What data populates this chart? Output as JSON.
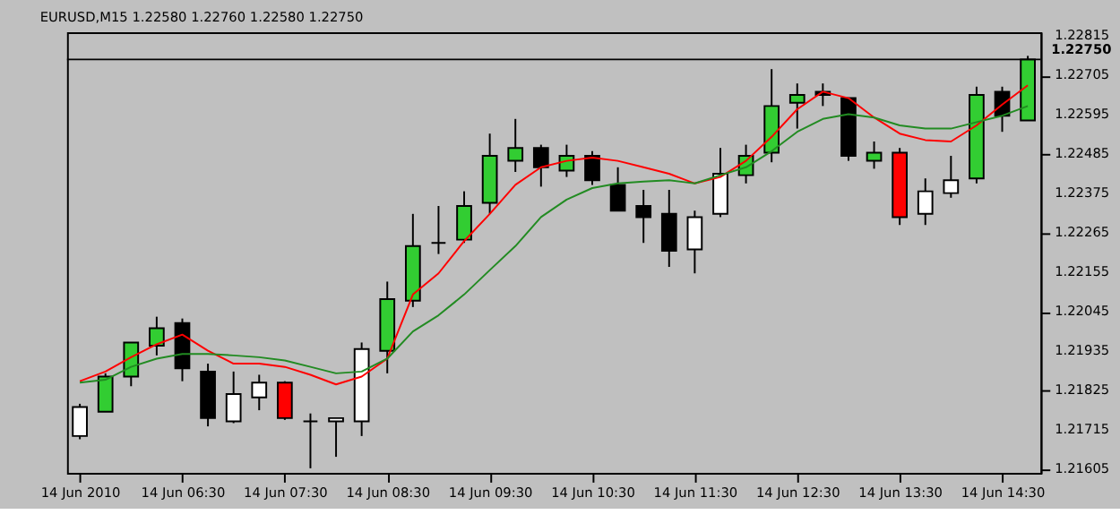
{
  "chart_data": {
    "type": "candlestick",
    "title": "EURUSD,M15  1.22580 1.22760 1.22580 1.22750",
    "categories": [
      "14 Jun 2010",
      null,
      null,
      null,
      "14 Jun 06:30",
      null,
      null,
      null,
      "14 Jun 07:30",
      null,
      null,
      null,
      "14 Jun 08:30",
      null,
      null,
      null,
      "14 Jun 09:30",
      null,
      null,
      null,
      "14 Jun 10:30",
      null,
      null,
      null,
      "14 Jun 11:30",
      null,
      null,
      null,
      "14 Jun 12:30",
      null,
      null,
      null,
      "14 Jun 13:30",
      null,
      null,
      null,
      "14 Jun 14:30",
      null
    ],
    "ohlc": [
      [
        1.21699,
        1.21789,
        1.2169,
        1.2178
      ],
      [
        1.21767,
        1.21874,
        1.21767,
        1.21865
      ],
      [
        1.21865,
        1.2196,
        1.21838,
        1.2196
      ],
      [
        1.21951,
        1.22032,
        1.21924,
        1.22
      ],
      [
        1.22014,
        1.22027,
        1.21852,
        1.21888
      ],
      [
        1.21879,
        1.21901,
        1.21726,
        1.21749
      ],
      [
        1.2174,
        1.21879,
        1.21735,
        1.21816
      ],
      [
        1.21807,
        1.2187,
        1.21771,
        1.21848
      ],
      [
        1.21848,
        1.21852,
        1.21744,
        1.21749
      ],
      [
        1.2174,
        1.21762,
        1.21609,
        1.2174
      ],
      [
        1.2174,
        1.21749,
        1.21641,
        1.21749
      ],
      [
        1.2174,
        1.2196,
        1.21699,
        1.21942
      ],
      [
        1.21937,
        1.2213,
        1.21874,
        1.22081
      ],
      [
        1.22077,
        1.22319,
        1.22059,
        1.22229
      ],
      [
        1.22238,
        1.22341,
        1.22207,
        1.22238
      ],
      [
        1.22247,
        1.22382,
        1.22238,
        1.22341
      ],
      [
        1.2235,
        1.22543,
        1.22319,
        1.22481
      ],
      [
        1.22467,
        1.22584,
        1.22436,
        1.22503
      ],
      [
        1.22503,
        1.22512,
        1.22395,
        1.22449
      ],
      [
        1.2244,
        1.22512,
        1.22422,
        1.22481
      ],
      [
        1.22481,
        1.22494,
        1.224,
        1.22413
      ],
      [
        1.224,
        1.22449,
        1.22328,
        1.22328
      ],
      [
        1.22341,
        1.22386,
        1.22238,
        1.2231
      ],
      [
        1.22319,
        1.22386,
        1.22171,
        1.22216
      ],
      [
        1.2222,
        1.22328,
        1.22153,
        1.2231
      ],
      [
        1.22319,
        1.22503,
        1.2231,
        1.22431
      ],
      [
        1.22427,
        1.22512,
        1.22404,
        1.22481
      ],
      [
        1.2249,
        1.22723,
        1.22463,
        1.2262
      ],
      [
        1.22629,
        1.22683,
        1.22557,
        1.22651
      ],
      [
        1.2266,
        1.22683,
        1.2262,
        1.22651
      ],
      [
        1.22642,
        1.22642,
        1.22467,
        1.22481
      ],
      [
        1.22467,
        1.22521,
        1.22445,
        1.2249
      ],
      [
        1.2249,
        1.22503,
        1.22288,
        1.2231
      ],
      [
        1.22319,
        1.22418,
        1.22288,
        1.22382
      ],
      [
        1.22377,
        1.22481,
        1.22364,
        1.22413
      ],
      [
        1.22418,
        1.22674,
        1.22404,
        1.22651
      ],
      [
        1.2266,
        1.22674,
        1.22548,
        1.22593
      ],
      [
        1.2258,
        1.2276,
        1.2258,
        1.2275
      ]
    ],
    "colors": [
      "#ffffff",
      "#32cd32",
      "#32cd32",
      "#32cd32",
      "#000000",
      "#000000",
      "#ffffff",
      "#ffffff",
      "#ff0000",
      "#000000",
      "#ffffff",
      "#ffffff",
      "#32cd32",
      "#32cd32",
      "#000000",
      "#32cd32",
      "#32cd32",
      "#32cd32",
      "#000000",
      "#32cd32",
      "#000000",
      "#000000",
      "#000000",
      "#000000",
      "#ffffff",
      "#ffffff",
      "#32cd32",
      "#32cd32",
      "#32cd32",
      "#000000",
      "#000000",
      "#32cd32",
      "#ff0000",
      "#ffffff",
      "#ffffff",
      "#32cd32",
      "#000000",
      "#32cd32"
    ],
    "series": [
      {
        "type": "line",
        "color": "#ff0000",
        "values": [
          1.21852,
          1.21879,
          1.21919,
          1.21955,
          1.21982,
          1.21937,
          1.21901,
          1.21901,
          1.21892,
          1.2187,
          1.21843,
          1.21865,
          1.21915,
          1.22094,
          1.22153,
          1.22243,
          1.22319,
          1.224,
          1.22449,
          1.22467,
          1.22476,
          1.22467,
          1.22449,
          1.22431,
          1.22404,
          1.22422,
          1.22467,
          1.22534,
          1.22611,
          1.2266,
          1.22642,
          1.22588,
          1.22543,
          1.22525,
          1.22521,
          1.22566,
          1.22624,
          1.22678
        ]
      },
      {
        "type": "line",
        "color": "#228b22",
        "values": [
          1.21848,
          1.21856,
          1.21892,
          1.21915,
          1.21928,
          1.21928,
          1.21924,
          1.21919,
          1.2191,
          1.21892,
          1.21874,
          1.21879,
          1.21915,
          1.21991,
          1.22036,
          1.22094,
          1.22162,
          1.22229,
          1.2231,
          1.22359,
          1.22391,
          1.22404,
          1.22409,
          1.22413,
          1.22404,
          1.22427,
          1.22449,
          1.22494,
          1.22548,
          1.22584,
          1.22597,
          1.22588,
          1.22566,
          1.22557,
          1.22557,
          1.22575,
          1.22593,
          1.2262
        ]
      }
    ],
    "ylim": [
      1.21596,
      1.22826
    ],
    "yticks": [
      1.21605,
      1.21715,
      1.21825,
      1.21935,
      1.22045,
      1.22155,
      1.22265,
      1.22375,
      1.22485,
      1.22595,
      1.22705,
      1.22815
    ],
    "ref_lines": [
      {
        "axis": "y",
        "value": 1.2275,
        "label": "1.22750",
        "color": "#000000"
      }
    ]
  }
}
